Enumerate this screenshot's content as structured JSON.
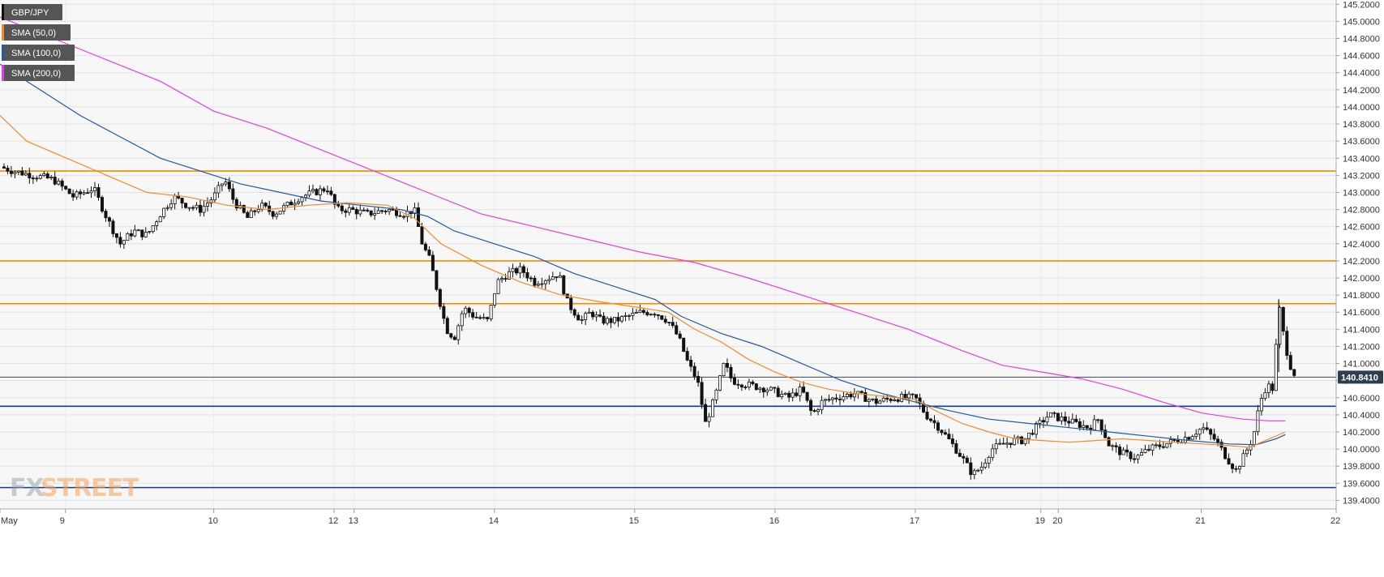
{
  "chart_data": {
    "type": "candlestick",
    "symbol": "GBP/JPY",
    "legend": [
      {
        "label": "GBP/JPY",
        "color": "#111111"
      },
      {
        "label": "SMA (50,0)",
        "color": "#f28c28"
      },
      {
        "label": "SMA (100,0)",
        "color": "#1f5aa6"
      },
      {
        "label": "SMA (200,0)",
        "color": "#e040e0"
      }
    ],
    "ylim": [
      139.3,
      145.25
    ],
    "y_ticks": [
      "139.4000",
      "139.6000",
      "139.8000",
      "140.0000",
      "140.2000",
      "140.4000",
      "140.6000",
      "140.8000",
      "141.0000",
      "141.2000",
      "141.4000",
      "141.6000",
      "141.8000",
      "142.0000",
      "142.2000",
      "142.4000",
      "142.6000",
      "142.8000",
      "143.0000",
      "143.2000",
      "143.4000",
      "143.6000",
      "143.8000",
      "144.0000",
      "144.2000",
      "144.4000",
      "144.6000",
      "144.8000",
      "145.0000",
      "145.2000"
    ],
    "x_ticks": [
      {
        "label": "May",
        "t": 0
      },
      {
        "label": "9",
        "t": 0.049
      },
      {
        "label": "10",
        "t": 0.16
      },
      {
        "label": "12",
        "t": 0.25
      },
      {
        "label": "13",
        "t": 0.265
      },
      {
        "label": "14",
        "t": 0.37
      },
      {
        "label": "15",
        "t": 0.475
      },
      {
        "label": "16",
        "t": 0.58
      },
      {
        "label": "17",
        "t": 0.685
      },
      {
        "label": "19",
        "t": 0.779
      },
      {
        "label": "20",
        "t": 0.792
      },
      {
        "label": "21",
        "t": 0.899
      },
      {
        "label": "22",
        "t": 1.0
      }
    ],
    "last_price": {
      "value": 140.841,
      "label": "140.8410"
    },
    "resistance_lines": [
      143.25,
      142.2,
      141.7
    ],
    "support_lines": [
      140.5,
      139.55
    ],
    "price_path": [
      [
        0.0,
        143.3
      ],
      [
        0.01,
        143.25
      ],
      [
        0.025,
        143.2
      ],
      [
        0.04,
        143.15
      ],
      [
        0.055,
        142.95
      ],
      [
        0.07,
        143.05
      ],
      [
        0.08,
        142.7
      ],
      [
        0.09,
        142.4
      ],
      [
        0.1,
        142.55
      ],
      [
        0.11,
        142.5
      ],
      [
        0.12,
        142.75
      ],
      [
        0.13,
        142.95
      ],
      [
        0.14,
        142.85
      ],
      [
        0.15,
        142.8
      ],
      [
        0.16,
        142.95
      ],
      [
        0.168,
        143.15
      ],
      [
        0.175,
        142.9
      ],
      [
        0.185,
        142.7
      ],
      [
        0.195,
        142.85
      ],
      [
        0.205,
        142.75
      ],
      [
        0.215,
        142.85
      ],
      [
        0.225,
        142.95
      ],
      [
        0.235,
        143.0
      ],
      [
        0.245,
        143.05
      ],
      [
        0.252,
        142.8
      ],
      [
        0.262,
        142.8
      ],
      [
        0.275,
        142.75
      ],
      [
        0.29,
        142.8
      ],
      [
        0.303,
        142.75
      ],
      [
        0.31,
        142.8
      ],
      [
        0.316,
        142.4
      ],
      [
        0.322,
        142.2
      ],
      [
        0.328,
        141.8
      ],
      [
        0.334,
        141.4
      ],
      [
        0.34,
        141.3
      ],
      [
        0.347,
        141.65
      ],
      [
        0.355,
        141.55
      ],
      [
        0.365,
        141.5
      ],
      [
        0.372,
        141.95
      ],
      [
        0.38,
        142.05
      ],
      [
        0.39,
        142.1
      ],
      [
        0.4,
        141.95
      ],
      [
        0.41,
        142.0
      ],
      [
        0.418,
        142.05
      ],
      [
        0.425,
        141.7
      ],
      [
        0.435,
        141.5
      ],
      [
        0.442,
        141.6
      ],
      [
        0.45,
        141.5
      ],
      [
        0.46,
        141.5
      ],
      [
        0.47,
        141.55
      ],
      [
        0.48,
        141.6
      ],
      [
        0.49,
        141.6
      ],
      [
        0.5,
        141.5
      ],
      [
        0.508,
        141.3
      ],
      [
        0.515,
        141.0
      ],
      [
        0.522,
        140.8
      ],
      [
        0.528,
        140.3
      ],
      [
        0.535,
        140.6
      ],
      [
        0.542,
        141.0
      ],
      [
        0.548,
        140.8
      ],
      [
        0.56,
        140.75
      ],
      [
        0.575,
        140.7
      ],
      [
        0.59,
        140.6
      ],
      [
        0.6,
        140.7
      ],
      [
        0.608,
        140.4
      ],
      [
        0.615,
        140.55
      ],
      [
        0.625,
        140.6
      ],
      [
        0.64,
        140.65
      ],
      [
        0.655,
        140.55
      ],
      [
        0.67,
        140.6
      ],
      [
        0.685,
        140.6
      ],
      [
        0.693,
        140.4
      ],
      [
        0.703,
        140.25
      ],
      [
        0.713,
        140.05
      ],
      [
        0.72,
        139.9
      ],
      [
        0.728,
        139.7
      ],
      [
        0.735,
        139.8
      ],
      [
        0.742,
        140.0
      ],
      [
        0.75,
        140.05
      ],
      [
        0.758,
        140.1
      ],
      [
        0.766,
        140.1
      ],
      [
        0.775,
        140.25
      ],
      [
        0.785,
        140.4
      ],
      [
        0.795,
        140.35
      ],
      [
        0.805,
        140.3
      ],
      [
        0.815,
        140.25
      ],
      [
        0.822,
        140.35
      ],
      [
        0.83,
        140.05
      ],
      [
        0.84,
        139.95
      ],
      [
        0.85,
        139.9
      ],
      [
        0.86,
        140.0
      ],
      [
        0.87,
        140.05
      ],
      [
        0.88,
        140.1
      ],
      [
        0.89,
        140.15
      ],
      [
        0.9,
        140.25
      ],
      [
        0.91,
        140.1
      ],
      [
        0.918,
        139.9
      ],
      [
        0.925,
        139.75
      ],
      [
        0.932,
        139.95
      ],
      [
        0.938,
        140.15
      ],
      [
        0.943,
        140.55
      ],
      [
        0.948,
        140.75
      ],
      [
        0.953,
        140.7
      ],
      [
        0.957,
        141.7
      ],
      [
        0.961,
        141.3
      ],
      [
        0.965,
        141.0
      ],
      [
        0.97,
        140.84
      ]
    ],
    "sma_50": [
      [
        0.0,
        143.9
      ],
      [
        0.02,
        143.6
      ],
      [
        0.05,
        143.4
      ],
      [
        0.08,
        143.2
      ],
      [
        0.11,
        143.0
      ],
      [
        0.14,
        142.95
      ],
      [
        0.17,
        142.85
      ],
      [
        0.2,
        142.8
      ],
      [
        0.23,
        142.85
      ],
      [
        0.26,
        142.88
      ],
      [
        0.29,
        142.85
      ],
      [
        0.31,
        142.7
      ],
      [
        0.33,
        142.4
      ],
      [
        0.36,
        142.15
      ],
      [
        0.39,
        141.95
      ],
      [
        0.42,
        141.8
      ],
      [
        0.45,
        141.72
      ],
      [
        0.48,
        141.65
      ],
      [
        0.5,
        141.6
      ],
      [
        0.52,
        141.4
      ],
      [
        0.54,
        141.25
      ],
      [
        0.56,
        141.05
      ],
      [
        0.58,
        140.9
      ],
      [
        0.6,
        140.78
      ],
      [
        0.62,
        140.7
      ],
      [
        0.64,
        140.65
      ],
      [
        0.66,
        140.62
      ],
      [
        0.685,
        140.58
      ],
      [
        0.7,
        140.45
      ],
      [
        0.72,
        140.3
      ],
      [
        0.74,
        140.2
      ],
      [
        0.76,
        140.12
      ],
      [
        0.78,
        140.1
      ],
      [
        0.8,
        140.08
      ],
      [
        0.82,
        140.1
      ],
      [
        0.84,
        140.12
      ],
      [
        0.86,
        140.1
      ],
      [
        0.88,
        140.08
      ],
      [
        0.9,
        140.06
      ],
      [
        0.92,
        140.04
      ],
      [
        0.935,
        140.02
      ],
      [
        0.95,
        140.12
      ],
      [
        0.962,
        140.2
      ]
    ],
    "sma_100": [
      [
        0.0,
        144.5
      ],
      [
        0.03,
        144.2
      ],
      [
        0.06,
        143.9
      ],
      [
        0.09,
        143.65
      ],
      [
        0.12,
        143.4
      ],
      [
        0.15,
        143.25
      ],
      [
        0.18,
        143.1
      ],
      [
        0.21,
        143.0
      ],
      [
        0.24,
        142.9
      ],
      [
        0.27,
        142.85
      ],
      [
        0.3,
        142.8
      ],
      [
        0.32,
        142.72
      ],
      [
        0.34,
        142.55
      ],
      [
        0.37,
        142.4
      ],
      [
        0.4,
        142.25
      ],
      [
        0.43,
        142.05
      ],
      [
        0.46,
        141.9
      ],
      [
        0.49,
        141.75
      ],
      [
        0.51,
        141.55
      ],
      [
        0.54,
        141.35
      ],
      [
        0.57,
        141.2
      ],
      [
        0.6,
        141.0
      ],
      [
        0.63,
        140.8
      ],
      [
        0.66,
        140.65
      ],
      [
        0.685,
        140.55
      ],
      [
        0.71,
        140.45
      ],
      [
        0.74,
        140.35
      ],
      [
        0.77,
        140.3
      ],
      [
        0.8,
        140.25
      ],
      [
        0.83,
        140.2
      ],
      [
        0.86,
        140.15
      ],
      [
        0.89,
        140.1
      ],
      [
        0.92,
        140.06
      ],
      [
        0.94,
        140.05
      ],
      [
        0.955,
        140.12
      ],
      [
        0.962,
        140.17
      ]
    ],
    "sma_200": [
      [
        0.0,
        145.05
      ],
      [
        0.04,
        144.8
      ],
      [
        0.08,
        144.55
      ],
      [
        0.12,
        144.3
      ],
      [
        0.16,
        143.95
      ],
      [
        0.2,
        143.75
      ],
      [
        0.24,
        143.5
      ],
      [
        0.28,
        143.25
      ],
      [
        0.32,
        143.0
      ],
      [
        0.36,
        142.75
      ],
      [
        0.4,
        142.6
      ],
      [
        0.44,
        142.45
      ],
      [
        0.48,
        142.3
      ],
      [
        0.52,
        142.18
      ],
      [
        0.56,
        142.0
      ],
      [
        0.6,
        141.8
      ],
      [
        0.64,
        141.6
      ],
      [
        0.68,
        141.4
      ],
      [
        0.72,
        141.15
      ],
      [
        0.75,
        140.98
      ],
      [
        0.78,
        140.9
      ],
      [
        0.81,
        140.82
      ],
      [
        0.84,
        140.7
      ],
      [
        0.87,
        140.55
      ],
      [
        0.9,
        140.42
      ],
      [
        0.93,
        140.35
      ],
      [
        0.95,
        140.33
      ],
      [
        0.962,
        140.33
      ]
    ],
    "watermark": {
      "part1": "FX",
      "part2": "STREET"
    }
  }
}
